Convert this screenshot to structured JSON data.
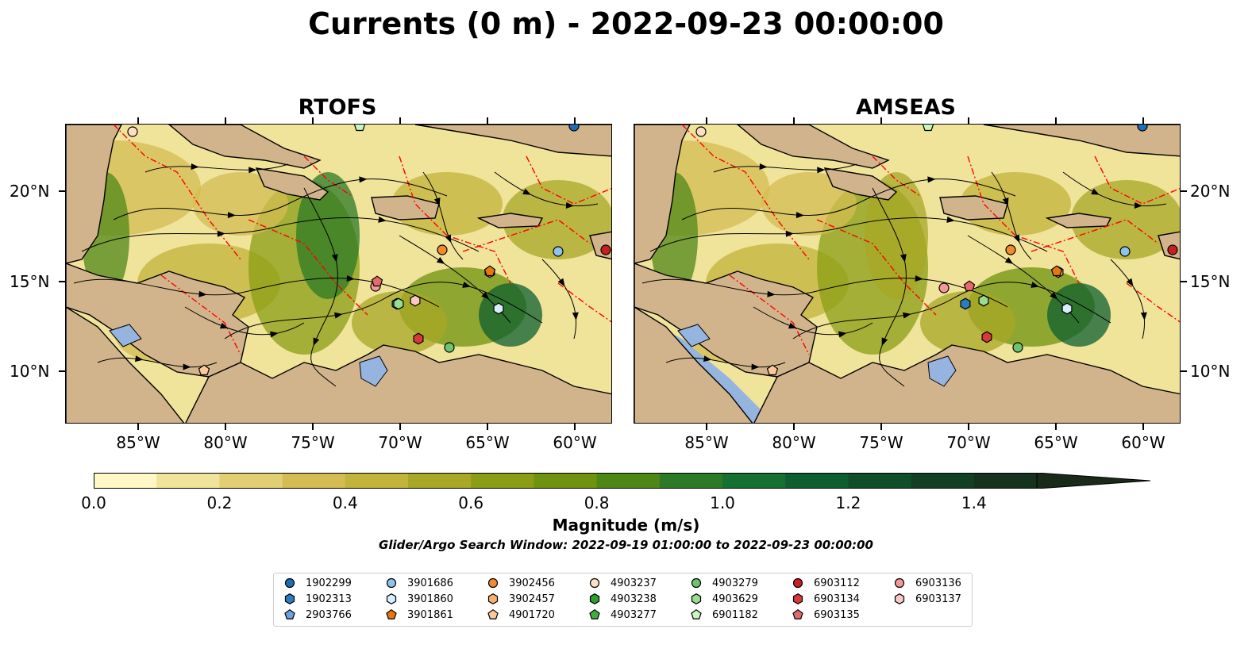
{
  "title": "Currents (0 m) - 2022-09-23 00:00:00",
  "panels": [
    {
      "title": "RTOFS"
    },
    {
      "title": "AMSEAS"
    }
  ],
  "lon_ticks": [
    "85°W",
    "80°W",
    "75°W",
    "70°W",
    "65°W",
    "60°W"
  ],
  "lat_ticks": [
    "20°N",
    "15°N",
    "10°N"
  ],
  "colorbar": {
    "label": "Magnitude (m/s)",
    "ticks": [
      "0.0",
      "0.2",
      "0.4",
      "0.6",
      "0.8",
      "1.0",
      "1.2",
      "1.4"
    ],
    "min": 0.0,
    "max": 1.5,
    "extend": "max",
    "colors": [
      "#fff8c4",
      "#f0e39a",
      "#e2cf74",
      "#d4bc53",
      "#c2b33a",
      "#a8a726",
      "#8a9d14",
      "#6f930e",
      "#4f8717",
      "#2c7a26",
      "#157031",
      "#0e5f2f",
      "#104e2a",
      "#123f24",
      "#15321e",
      "#182a18"
    ]
  },
  "search_window": "Glider/Argo Search Window: 2022-09-19 01:00:00 to 2022-09-23 00:00:00",
  "legend": [
    {
      "id": "1902299",
      "color": "#1f6eb4",
      "shape": "circle"
    },
    {
      "id": "1902313",
      "color": "#2c7cc3",
      "shape": "hexagon"
    },
    {
      "id": "2903766",
      "color": "#6fa0d8",
      "shape": "pentagon"
    },
    {
      "id": "3901686",
      "color": "#8ec3ec",
      "shape": "circle"
    },
    {
      "id": "3901860",
      "color": "#d8eefc",
      "shape": "hexagon"
    },
    {
      "id": "3901861",
      "color": "#e8760f",
      "shape": "pentagon"
    },
    {
      "id": "3902456",
      "color": "#f28a2e",
      "shape": "circle"
    },
    {
      "id": "3902457",
      "color": "#f7b070",
      "shape": "hexagon"
    },
    {
      "id": "4901720",
      "color": "#fbc99a",
      "shape": "pentagon"
    },
    {
      "id": "4903237",
      "color": "#fde0c2",
      "shape": "circle"
    },
    {
      "id": "4903238",
      "color": "#2ca02c",
      "shape": "hexagon"
    },
    {
      "id": "4903277",
      "color": "#3fae3f",
      "shape": "pentagon"
    },
    {
      "id": "4903279",
      "color": "#6cc46c",
      "shape": "circle"
    },
    {
      "id": "4903629",
      "color": "#98dd90",
      "shape": "hexagon"
    },
    {
      "id": "6901182",
      "color": "#c8f5c0",
      "shape": "pentagon"
    },
    {
      "id": "6903112",
      "color": "#c91f1f",
      "shape": "circle"
    },
    {
      "id": "6903134",
      "color": "#d83a3a",
      "shape": "hexagon"
    },
    {
      "id": "6903135",
      "color": "#e66a6a",
      "shape": "pentagon"
    },
    {
      "id": "6903136",
      "color": "#f29a9a",
      "shape": "circle"
    },
    {
      "id": "6903137",
      "color": "#fbc8c8",
      "shape": "hexagon"
    }
  ],
  "colors": {
    "land": "#d2b48c",
    "lake": "#96b4e0",
    "eez_line": "#ff0000",
    "border_line": "#000000"
  }
}
